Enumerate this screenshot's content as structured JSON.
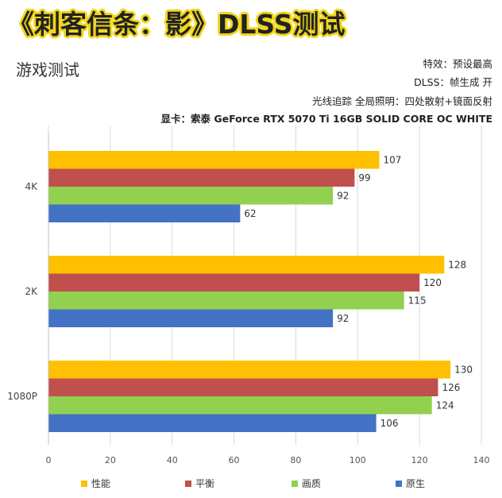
{
  "header": {
    "banner": "《刺客信条：影》DLSS测试",
    "subtitle": "游戏测试",
    "info": [
      "特效：预设最高",
      "DLSS：帧生成 开",
      "光线追踪 全局照明：四处散射+镜面反射",
      "显卡：索泰 GeForce RTX 5070 Ti 16GB SOLID CORE OC WHITE"
    ]
  },
  "chart_data": {
    "type": "bar",
    "orientation": "horizontal",
    "categories": [
      "4K",
      "2K",
      "1080P"
    ],
    "series": [
      {
        "name": "性能",
        "color": "#ffc000",
        "values": [
          107,
          128,
          130
        ]
      },
      {
        "name": "平衡",
        "color": "#c0504d",
        "values": [
          99,
          120,
          126
        ]
      },
      {
        "name": "画质",
        "color": "#92d050",
        "values": [
          92,
          115,
          124
        ]
      },
      {
        "name": "原生",
        "color": "#4472c4",
        "values": [
          62,
          92,
          106
        ]
      }
    ],
    "xlim": [
      0,
      140
    ],
    "xticks": [
      0,
      20,
      40,
      60,
      80,
      100,
      120,
      140
    ],
    "grid": true,
    "data_labels": true,
    "legend_position": "bottom"
  }
}
